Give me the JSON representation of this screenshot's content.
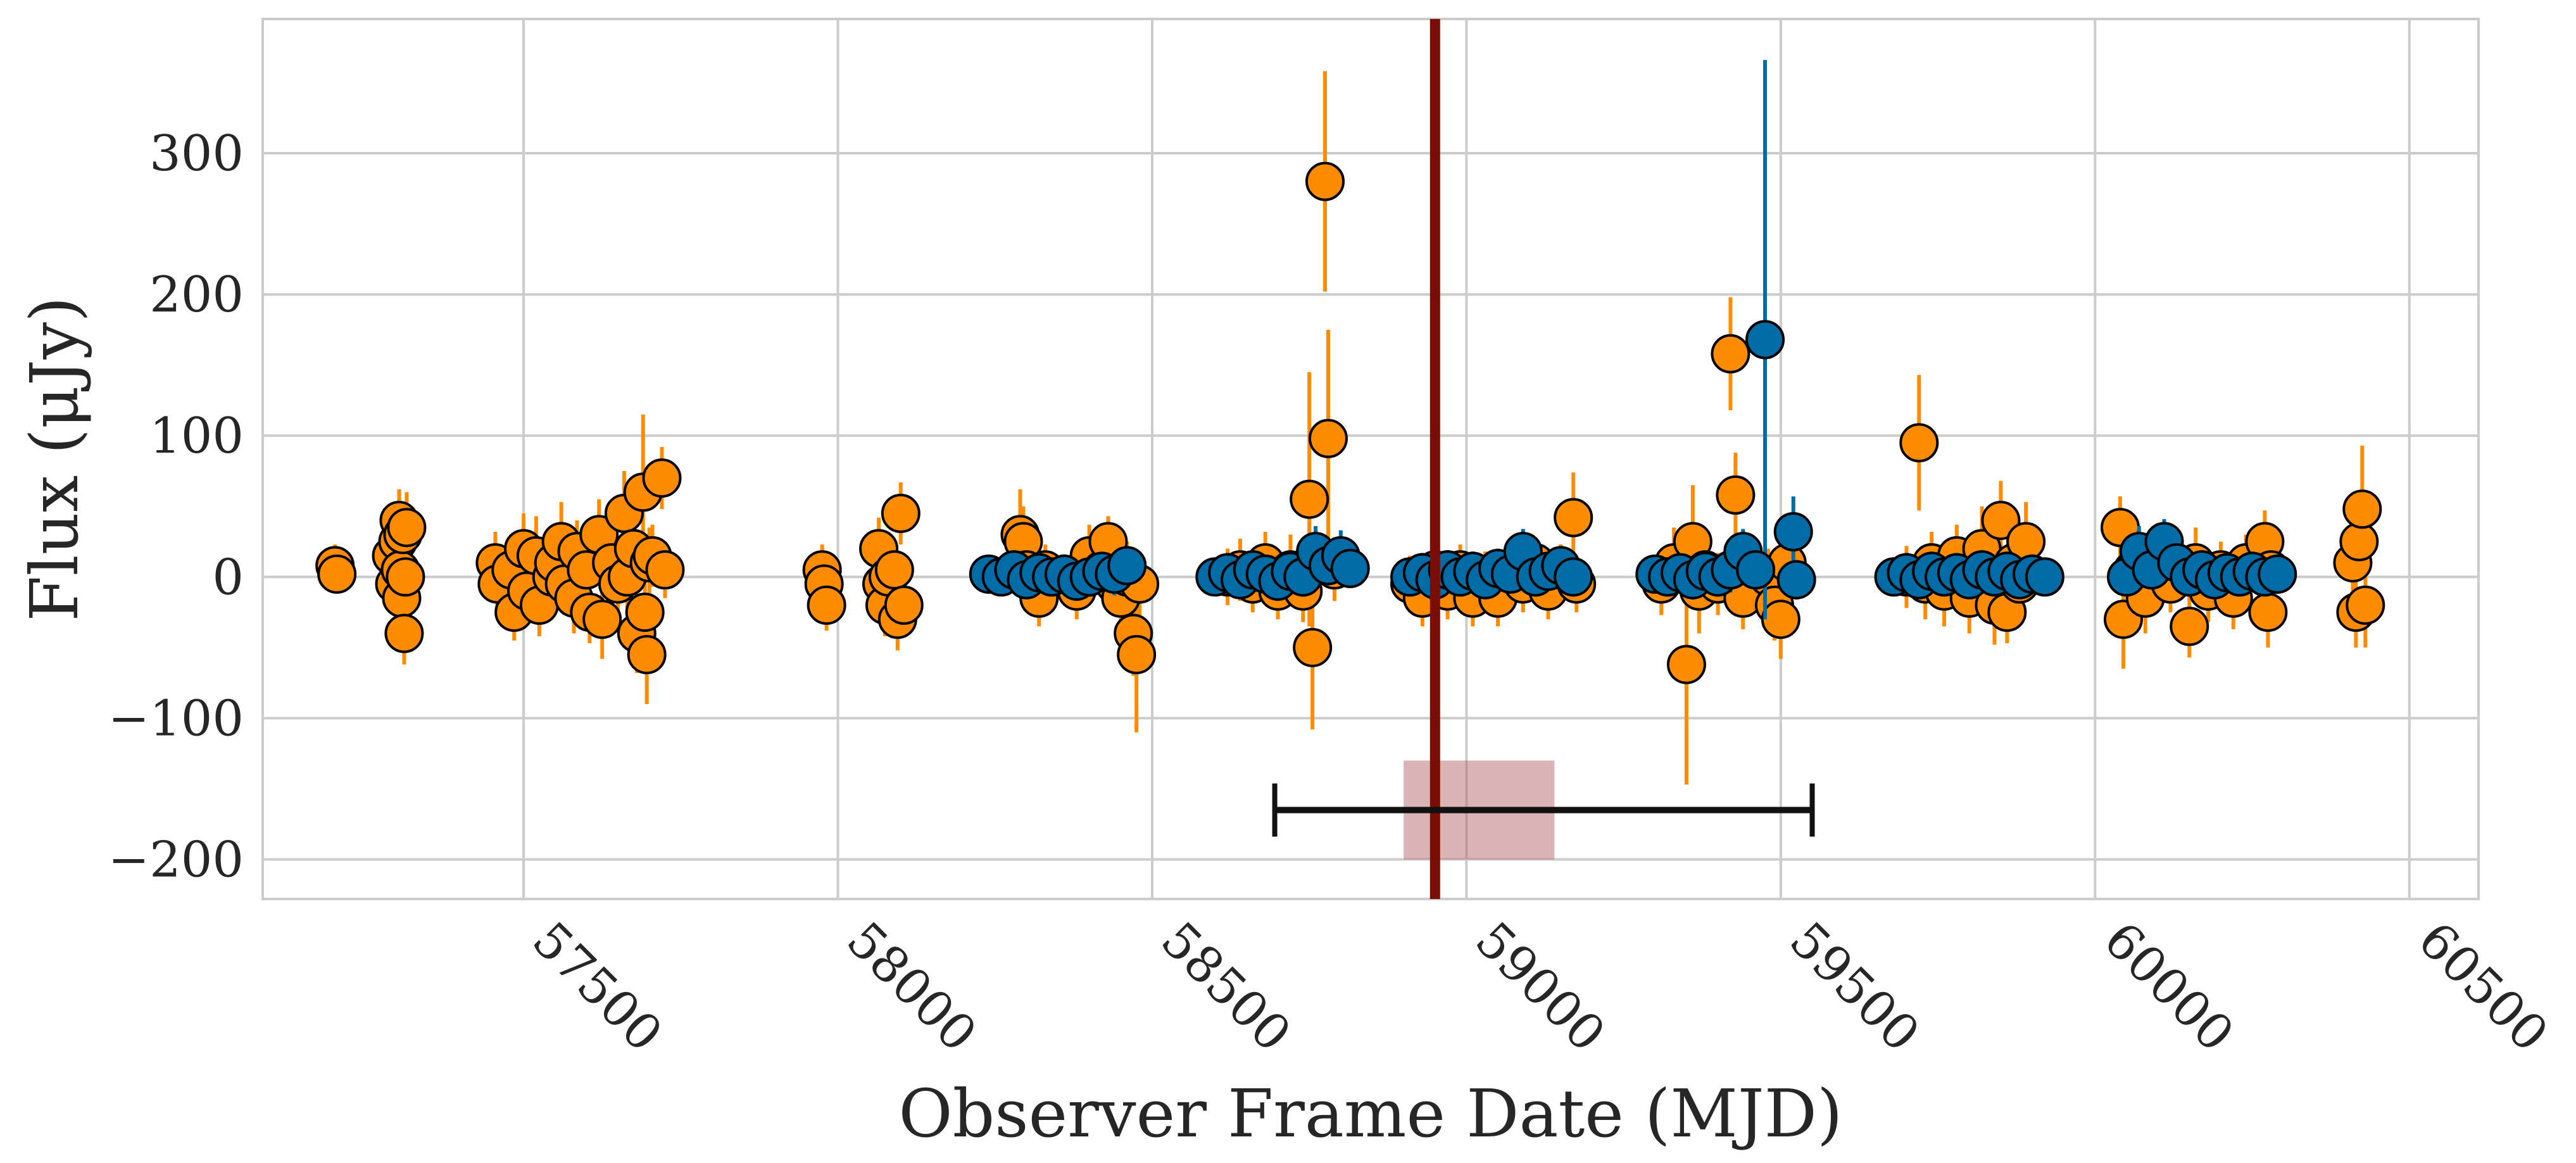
{
  "chart_data": {
    "type": "scatter",
    "title": "",
    "xlabel": "Observer Frame Date (MJD)",
    "ylabel": "Flux (μJy)",
    "xlim": [
      57085,
      60610
    ],
    "ylim": [
      -228,
      395
    ],
    "grid": true,
    "legend": "none",
    "x_ticks": [
      57500,
      58000,
      58500,
      59000,
      59500,
      60000,
      60500
    ],
    "x_tick_labels": [
      "57500",
      "58000",
      "58500",
      "59000",
      "59500",
      "60000",
      "60500"
    ],
    "y_ticks": [
      -200,
      -100,
      0,
      100,
      200,
      300
    ],
    "y_tick_labels": [
      "−200",
      "−100",
      "0",
      "100",
      "200",
      "300"
    ],
    "colors": {
      "orange": "#ff8c00",
      "blue": "#006ba4",
      "vline": "#7a0d06",
      "band": "#b05a5a",
      "bracket": "#111111",
      "grid": "#cccccc",
      "frame": "#cccccc"
    },
    "vertical_line": {
      "x": 58950
    },
    "shaded_band": {
      "x": [
        58900,
        59140
      ],
      "y": [
        -200,
        -130
      ]
    },
    "horizontal_bracket": {
      "x": [
        58695,
        59550
      ],
      "y": -165
    },
    "series": [
      {
        "color": "orange",
        "points": [
          [
            57200,
            8,
            15
          ],
          [
            57203,
            2,
            12
          ],
          [
            57290,
            15,
            22
          ],
          [
            57295,
            -5,
            20
          ],
          [
            57300,
            25,
            25
          ],
          [
            57302,
            40,
            22
          ],
          [
            57304,
            5,
            20
          ],
          [
            57306,
            -15,
            22
          ],
          [
            57308,
            30,
            20
          ],
          [
            57310,
            -40,
            22
          ],
          [
            57312,
            0,
            18
          ],
          [
            57314,
            35,
            25
          ],
          [
            57455,
            10,
            22
          ],
          [
            57458,
            -5,
            20
          ],
          [
            57480,
            5,
            25
          ],
          [
            57485,
            -25,
            20
          ],
          [
            57500,
            20,
            25
          ],
          [
            57505,
            -10,
            22
          ],
          [
            57520,
            15,
            28
          ],
          [
            57525,
            -20,
            22
          ],
          [
            57545,
            0,
            25
          ],
          [
            57548,
            10,
            22
          ],
          [
            57560,
            25,
            28
          ],
          [
            57565,
            -5,
            22
          ],
          [
            57580,
            -15,
            25
          ],
          [
            57585,
            18,
            22
          ],
          [
            57600,
            5,
            28
          ],
          [
            57605,
            -25,
            22
          ],
          [
            57620,
            30,
            25
          ],
          [
            57625,
            -30,
            28
          ],
          [
            57640,
            10,
            22
          ],
          [
            57650,
            -5,
            25
          ],
          [
            57660,
            45,
            30
          ],
          [
            57665,
            0,
            22
          ],
          [
            57675,
            20,
            25
          ],
          [
            57680,
            -40,
            28
          ],
          [
            57690,
            60,
            55
          ],
          [
            57693,
            -25,
            22
          ],
          [
            57696,
            -55,
            35
          ],
          [
            57700,
            10,
            25
          ],
          [
            57705,
            15,
            22
          ],
          [
            57720,
            70,
            22
          ],
          [
            57725,
            5,
            20
          ],
          [
            57975,
            5,
            18
          ],
          [
            57978,
            -5,
            15
          ],
          [
            57982,
            -20,
            18
          ],
          [
            58065,
            20,
            22
          ],
          [
            58070,
            -5,
            20
          ],
          [
            58075,
            -20,
            22
          ],
          [
            58080,
            0,
            18
          ],
          [
            58090,
            5,
            20
          ],
          [
            58095,
            -30,
            22
          ],
          [
            58100,
            45,
            22
          ],
          [
            58105,
            -20,
            20
          ],
          [
            58290,
            30,
            32
          ],
          [
            58295,
            25,
            25
          ],
          [
            58300,
            5,
            20
          ],
          [
            58310,
            -5,
            18
          ],
          [
            58320,
            -15,
            20
          ],
          [
            58330,
            5,
            18
          ],
          [
            58380,
            -10,
            20
          ],
          [
            58400,
            15,
            22
          ],
          [
            58420,
            5,
            20
          ],
          [
            58430,
            25,
            18
          ],
          [
            58440,
            -5,
            20
          ],
          [
            58450,
            -15,
            22
          ],
          [
            58460,
            0,
            25
          ],
          [
            58470,
            -40,
            30
          ],
          [
            58475,
            -55,
            55
          ],
          [
            58480,
            -5,
            22
          ],
          [
            58620,
            0,
            20
          ],
          [
            58640,
            5,
            22
          ],
          [
            58660,
            -5,
            20
          ],
          [
            58680,
            10,
            22
          ],
          [
            58700,
            -10,
            20
          ],
          [
            58720,
            5,
            25
          ],
          [
            58740,
            -10,
            22
          ],
          [
            58750,
            55,
            90
          ],
          [
            58755,
            -50,
            58
          ],
          [
            58760,
            10,
            25
          ],
          [
            58775,
            280,
            78
          ],
          [
            58780,
            98,
            77
          ],
          [
            58790,
            5,
            22
          ],
          [
            58910,
            -5,
            20
          ],
          [
            58930,
            -15,
            20
          ],
          [
            58950,
            5,
            18
          ],
          [
            58970,
            -10,
            20
          ],
          [
            58990,
            5,
            18
          ],
          [
            59010,
            -15,
            20
          ],
          [
            59030,
            0,
            18
          ],
          [
            59050,
            -15,
            20
          ],
          [
            59070,
            5,
            18
          ],
          [
            59090,
            -5,
            20
          ],
          [
            59110,
            10,
            18
          ],
          [
            59130,
            -10,
            20
          ],
          [
            59150,
            5,
            18
          ],
          [
            59170,
            42,
            32
          ],
          [
            59175,
            -5,
            20
          ],
          [
            59310,
            -5,
            22
          ],
          [
            59330,
            10,
            25
          ],
          [
            59350,
            -62,
            85
          ],
          [
            59360,
            25,
            40
          ],
          [
            59370,
            -10,
            30
          ],
          [
            59380,
            5,
            25
          ],
          [
            59400,
            -5,
            22
          ],
          [
            59420,
            158,
            40
          ],
          [
            59428,
            58,
            30
          ],
          [
            59440,
            -15,
            22
          ],
          [
            59480,
            0,
            20
          ],
          [
            59490,
            -20,
            25
          ],
          [
            59500,
            -30,
            28
          ],
          [
            59510,
            10,
            22
          ],
          [
            59700,
            0,
            22
          ],
          [
            59720,
            95,
            48
          ],
          [
            59730,
            -5,
            25
          ],
          [
            59740,
            10,
            22
          ],
          [
            59760,
            -10,
            25
          ],
          [
            59780,
            15,
            22
          ],
          [
            59800,
            -15,
            25
          ],
          [
            59820,
            20,
            30
          ],
          [
            59840,
            -20,
            28
          ],
          [
            59850,
            40,
            28
          ],
          [
            59860,
            -25,
            22
          ],
          [
            59870,
            10,
            25
          ],
          [
            59880,
            -5,
            22
          ],
          [
            59890,
            25,
            28
          ],
          [
            60040,
            35,
            22
          ],
          [
            60045,
            -30,
            35
          ],
          [
            60060,
            5,
            22
          ],
          [
            60080,
            -15,
            25
          ],
          [
            60100,
            15,
            22
          ],
          [
            60120,
            -5,
            20
          ],
          [
            60150,
            -35,
            22
          ],
          [
            60160,
            10,
            25
          ],
          [
            60180,
            -10,
            22
          ],
          [
            60200,
            5,
            20
          ],
          [
            60220,
            -15,
            22
          ],
          [
            60240,
            10,
            20
          ],
          [
            60270,
            25,
            22
          ],
          [
            60275,
            -25,
            25
          ],
          [
            60280,
            5,
            20
          ],
          [
            60410,
            10,
            20
          ],
          [
            60415,
            -25,
            25
          ],
          [
            60420,
            25,
            22
          ],
          [
            60425,
            48,
            45
          ],
          [
            60430,
            -20,
            30
          ]
        ]
      },
      {
        "color": "blue",
        "points": [
          [
            58240,
            2,
            10
          ],
          [
            58260,
            0,
            12
          ],
          [
            58280,
            5,
            14
          ],
          [
            58300,
            -2,
            12
          ],
          [
            58320,
            3,
            14
          ],
          [
            58340,
            0,
            12
          ],
          [
            58360,
            2,
            14
          ],
          [
            58380,
            -3,
            12
          ],
          [
            58400,
            0,
            14
          ],
          [
            58420,
            4,
            12
          ],
          [
            58440,
            2,
            15
          ],
          [
            58460,
            8,
            14
          ],
          [
            58600,
            0,
            12
          ],
          [
            58620,
            3,
            14
          ],
          [
            58640,
            -2,
            12
          ],
          [
            58660,
            5,
            14
          ],
          [
            58680,
            2,
            12
          ],
          [
            58700,
            -3,
            14
          ],
          [
            58720,
            4,
            12
          ],
          [
            58740,
            0,
            14
          ],
          [
            58760,
            18,
            18
          ],
          [
            58780,
            8,
            14
          ],
          [
            58800,
            15,
            18
          ],
          [
            58815,
            6,
            12
          ],
          [
            58910,
            0,
            12
          ],
          [
            58930,
            3,
            14
          ],
          [
            58950,
            -2,
            12
          ],
          [
            58970,
            5,
            14
          ],
          [
            58990,
            0,
            12
          ],
          [
            59010,
            4,
            14
          ],
          [
            59030,
            -2,
            12
          ],
          [
            59050,
            6,
            14
          ],
          [
            59070,
            2,
            12
          ],
          [
            59090,
            18,
            16
          ],
          [
            59110,
            0,
            14
          ],
          [
            59130,
            4,
            12
          ],
          [
            59150,
            8,
            14
          ],
          [
            59170,
            0,
            12
          ],
          [
            59300,
            2,
            12
          ],
          [
            59320,
            0,
            14
          ],
          [
            59340,
            3,
            12
          ],
          [
            59360,
            -2,
            14
          ],
          [
            59380,
            4,
            12
          ],
          [
            59400,
            0,
            14
          ],
          [
            59420,
            5,
            16
          ],
          [
            59440,
            18,
            16
          ],
          [
            59460,
            5,
            14
          ],
          [
            59475,
            168,
            198
          ],
          [
            59520,
            32,
            25
          ],
          [
            59525,
            -2,
            14
          ],
          [
            59680,
            0,
            12
          ],
          [
            59700,
            3,
            14
          ],
          [
            59720,
            -2,
            12
          ],
          [
            59740,
            4,
            14
          ],
          [
            59760,
            0,
            12
          ],
          [
            59780,
            3,
            14
          ],
          [
            59800,
            -2,
            12
          ],
          [
            59820,
            5,
            14
          ],
          [
            59840,
            0,
            12
          ],
          [
            59860,
            4,
            14
          ],
          [
            59880,
            -2,
            12
          ],
          [
            59900,
            2,
            14
          ],
          [
            59920,
            0,
            12
          ],
          [
            60050,
            0,
            14
          ],
          [
            60070,
            18,
            18
          ],
          [
            60090,
            5,
            14
          ],
          [
            60110,
            25,
            16
          ],
          [
            60130,
            10,
            14
          ],
          [
            60150,
            0,
            12
          ],
          [
            60170,
            5,
            14
          ],
          [
            60190,
            -2,
            12
          ],
          [
            60210,
            3,
            14
          ],
          [
            60230,
            0,
            12
          ],
          [
            60250,
            4,
            14
          ],
          [
            60270,
            0,
            12
          ],
          [
            60290,
            2,
            14
          ]
        ]
      }
    ]
  }
}
